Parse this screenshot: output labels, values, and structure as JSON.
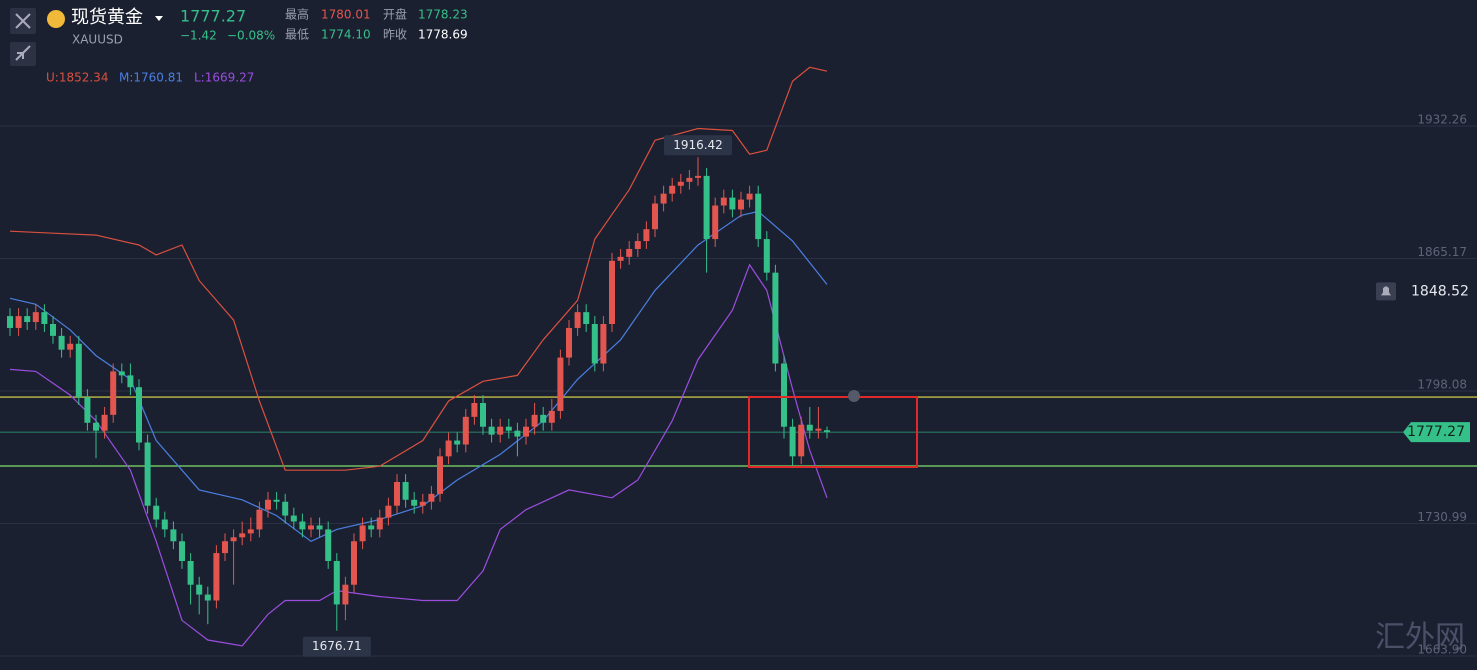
{
  "header": {
    "name": "现货黄金",
    "symbol": "XAUUSD",
    "price": "1777.27",
    "change": "−1.42",
    "change_pct": "−0.08%",
    "high_label": "最高",
    "high": "1780.01",
    "open_label": "开盘",
    "open": "1778.23",
    "low_label": "最低",
    "low": "1774.10",
    "prev_label": "昨收",
    "prev_close": "1778.69"
  },
  "indicator": {
    "upper": "U:1852.34",
    "middle": "M:1760.81",
    "lower": "L:1669.27"
  },
  "watermark": "汇外网",
  "chart_data": {
    "type": "candlestick",
    "open": [
      1836,
      1830,
      1836,
      1833,
      1838,
      1832,
      1826,
      1819,
      1822,
      1795,
      1782,
      1778,
      1786,
      1808,
      1806,
      1800,
      1772,
      1740,
      1733,
      1728,
      1722,
      1712,
      1700,
      1695,
      1692,
      1716,
      1722,
      1724,
      1726,
      1728,
      1738,
      1743,
      1742,
      1735,
      1732,
      1728,
      1730,
      1728,
      1712,
      1690,
      1700,
      1722,
      1730,
      1728,
      1734,
      1740,
      1752,
      1743,
      1740,
      1742,
      1746,
      1765,
      1773,
      1771,
      1785,
      1792,
      1780,
      1776,
      1780,
      1778,
      1775,
      1780,
      1786,
      1782,
      1788,
      1815,
      1830,
      1838,
      1832,
      1812,
      1832,
      1864,
      1866,
      1870,
      1874,
      1880,
      1893,
      1898,
      1902,
      1904,
      1906,
      1907,
      1875,
      1892,
      1896,
      1890,
      1895,
      1898,
      1875,
      1858,
      1812,
      1780,
      1765,
      1781,
      1778,
      1778.23
    ],
    "high": [
      1840,
      1840,
      1840,
      1842,
      1842,
      1836,
      1830,
      1826,
      1826,
      1799,
      1786,
      1790,
      1812,
      1812,
      1812,
      1804,
      1776,
      1744,
      1737,
      1732,
      1726,
      1716,
      1704,
      1699,
      1720,
      1726,
      1728,
      1732,
      1734,
      1742,
      1747,
      1747,
      1746,
      1739,
      1736,
      1734,
      1734,
      1732,
      1716,
      1704,
      1726,
      1734,
      1734,
      1738,
      1744,
      1756,
      1756,
      1747,
      1746,
      1750,
      1769,
      1777,
      1777,
      1789,
      1796,
      1796,
      1784,
      1784,
      1784,
      1782,
      1784,
      1792,
      1790,
      1794,
      1819,
      1834,
      1842,
      1842,
      1836,
      1836,
      1868,
      1870,
      1874,
      1878,
      1884,
      1897,
      1902,
      1906,
      1908,
      1910,
      1916.42,
      1911,
      1896,
      1900,
      1900,
      1899,
      1902,
      1902,
      1879,
      1862,
      1816,
      1784,
      1785,
      1790,
      1790,
      1780.01
    ],
    "low": [
      1826,
      1826,
      1829,
      1829,
      1828,
      1822,
      1815,
      1815,
      1791,
      1778,
      1764,
      1774,
      1782,
      1802,
      1796,
      1768,
      1736,
      1729,
      1724,
      1718,
      1708,
      1690,
      1685,
      1680,
      1688,
      1712,
      1700,
      1720,
      1722,
      1724,
      1734,
      1738,
      1731,
      1728,
      1724,
      1724,
      1724,
      1708,
      1676.71,
      1682,
      1696,
      1718,
      1724,
      1724,
      1730,
      1736,
      1739,
      1736,
      1736,
      1738,
      1742,
      1761,
      1767,
      1767,
      1781,
      1776,
      1772,
      1772,
      1774,
      1765,
      1771,
      1776,
      1778,
      1778,
      1784,
      1811,
      1826,
      1828,
      1808,
      1808,
      1828,
      1860,
      1862,
      1866,
      1870,
      1876,
      1889,
      1894,
      1898,
      1900,
      1902,
      1858,
      1871,
      1888,
      1886,
      1886,
      1891,
      1871,
      1854,
      1808,
      1774,
      1760,
      1761,
      1774,
      1774,
      1774.1
    ],
    "close": [
      1830,
      1836,
      1833,
      1838,
      1832,
      1826,
      1819,
      1822,
      1795,
      1782,
      1778,
      1786,
      1808,
      1806,
      1800,
      1772,
      1740,
      1733,
      1728,
      1722,
      1712,
      1700,
      1695,
      1692,
      1716,
      1722,
      1724,
      1726,
      1728,
      1738,
      1743,
      1742,
      1735,
      1732,
      1728,
      1730,
      1728,
      1712,
      1690,
      1700,
      1722,
      1730,
      1728,
      1734,
      1740,
      1752,
      1743,
      1740,
      1742,
      1746,
      1765,
      1773,
      1771,
      1785,
      1792,
      1780,
      1776,
      1780,
      1778,
      1775,
      1780,
      1786,
      1782,
      1788,
      1815,
      1830,
      1838,
      1832,
      1812,
      1832,
      1864,
      1866,
      1870,
      1874,
      1880,
      1893,
      1898,
      1902,
      1904,
      1906,
      1907,
      1875,
      1892,
      1896,
      1890,
      1895,
      1898,
      1875,
      1858,
      1812,
      1780,
      1765,
      1781,
      1778,
      1779,
      1777.27
    ],
    "up_color": "#e2564f",
    "down_color": "#35c08a",
    "ylim": [
      1656.81,
      1996.06
    ],
    "yticks": [
      {
        "value": 1663.9,
        "label": "1663.90"
      },
      1730.99,
      1798.08,
      1865.17,
      1932.26
    ],
    "grid": true,
    "bands": [
      {
        "color": "#d9503f",
        "x": [
          0,
          5,
          10,
          15,
          17,
          20,
          22,
          26,
          29,
          32,
          39,
          43,
          48,
          51,
          55,
          59,
          62,
          66,
          68,
          72,
          75,
          80,
          84,
          86,
          88,
          91,
          93,
          95
        ],
        "values": [
          1879,
          1878,
          1877,
          1872,
          1867,
          1872,
          1854,
          1834,
          1793,
          1758,
          1758,
          1760,
          1773,
          1793,
          1803,
          1806,
          1824,
          1844,
          1875,
          1900,
          1925,
          1931,
          1930,
          1918,
          1920,
          1955,
          1962,
          1960
        ]
      },
      {
        "color": "#4a7fe0",
        "x": [
          0,
          3,
          7,
          10,
          14,
          17,
          22,
          27,
          31,
          35,
          38,
          43,
          48,
          52,
          57,
          62,
          66,
          71,
          75,
          80,
          85,
          87,
          91,
          93,
          95
        ],
        "values": [
          1845,
          1842,
          1829,
          1816,
          1804,
          1773,
          1748,
          1743,
          1735,
          1722,
          1728,
          1733,
          1740,
          1753,
          1766,
          1783,
          1804,
          1824,
          1849,
          1872,
          1887,
          1889,
          1874,
          1863,
          1852
        ]
      },
      {
        "color": "#9b4de0",
        "x": [
          0,
          3,
          7,
          10,
          14,
          17,
          20,
          23,
          27,
          30,
          32,
          36,
          38,
          43,
          48,
          52,
          55,
          57,
          60,
          65,
          70,
          73,
          77,
          80,
          84,
          86,
          88,
          91,
          93,
          95
        ],
        "values": [
          1809,
          1808,
          1796,
          1783,
          1758,
          1722,
          1682,
          1672,
          1669,
          1685,
          1692,
          1692,
          1697,
          1694,
          1692,
          1692,
          1707,
          1728,
          1738,
          1748,
          1744,
          1753,
          1783,
          1814,
          1839,
          1862,
          1849,
          1799,
          1768,
          1744
        ]
      }
    ],
    "hlines": [
      {
        "value": 1795,
        "color": "#e8e04a"
      },
      {
        "value": 1760.1,
        "color": "#7ee06a"
      }
    ],
    "last_price": 1777.27,
    "alert_price": 1848.52,
    "annotations": [
      {
        "value": 1916.42,
        "index": 80
      },
      {
        "value": 1676.71,
        "index": 38
      }
    ]
  }
}
